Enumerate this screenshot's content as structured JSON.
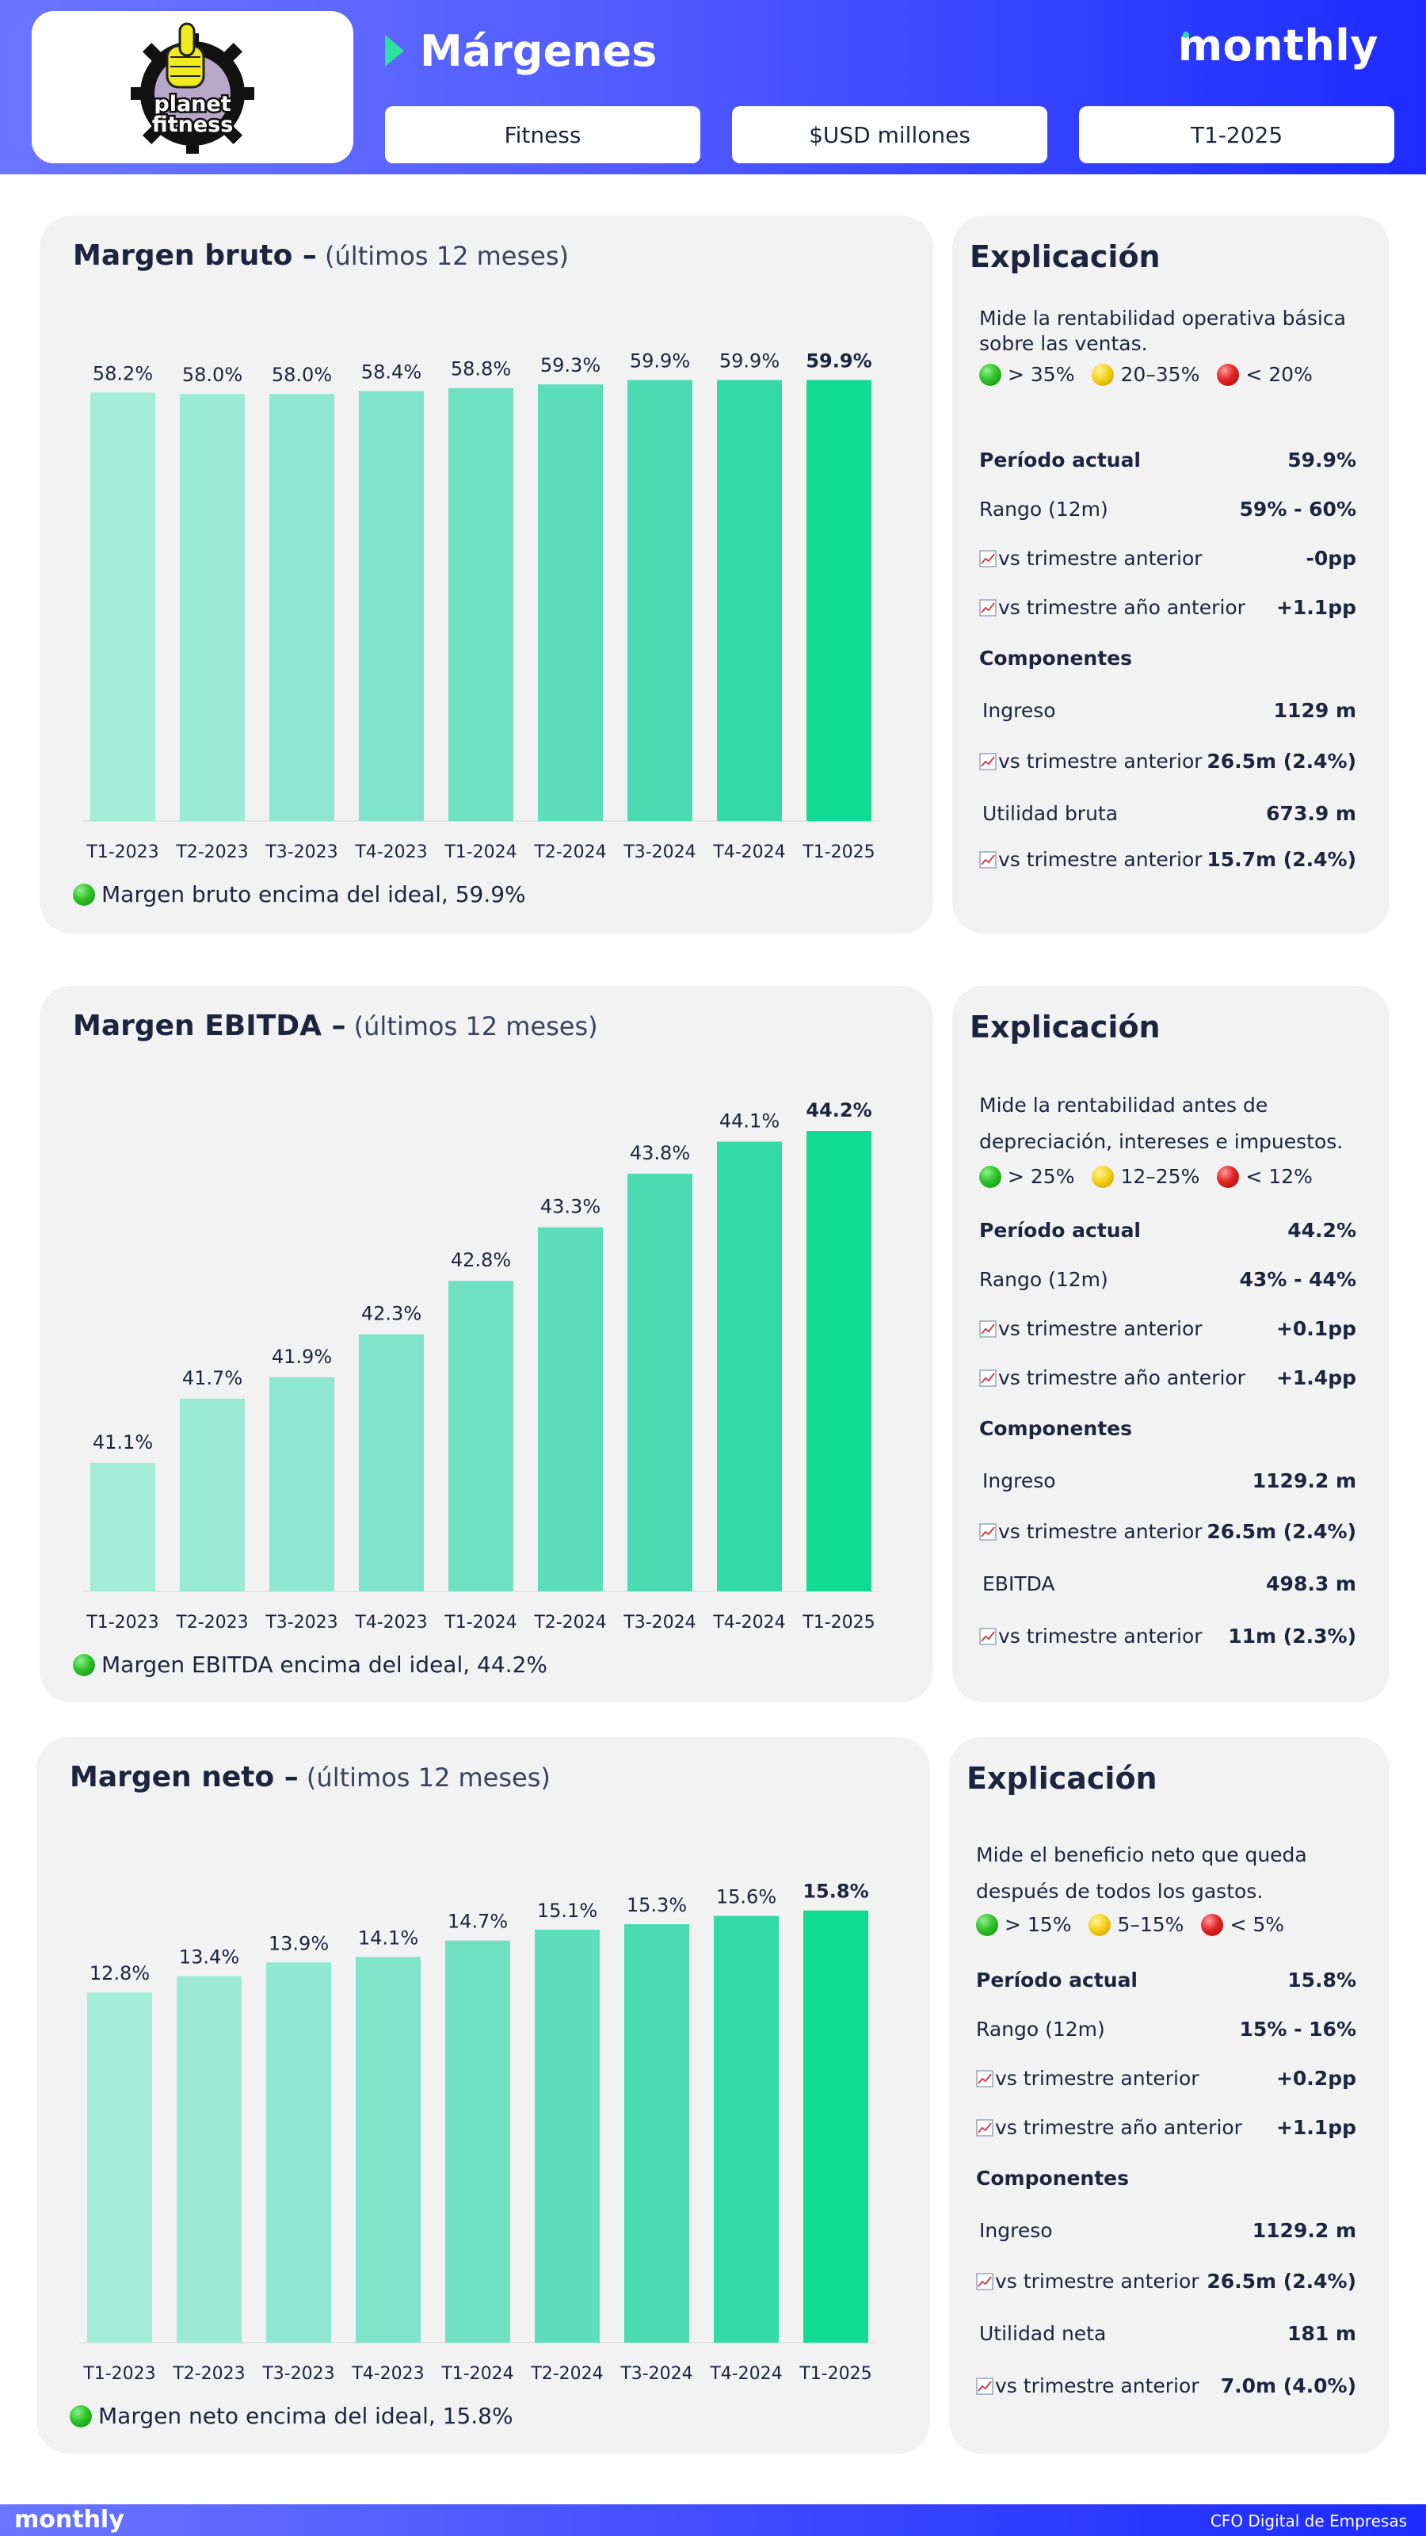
{
  "header": {
    "title": "Márgenes",
    "brand": "monthly",
    "logo_text_1": "planet",
    "logo_text_2": "fitness",
    "pills": [
      "Fitness",
      "$USD millones",
      "T1-2025"
    ]
  },
  "colors": {
    "bar_gradient": [
      "#a3ecd6",
      "#9bead3",
      "#8fe7cf",
      "#7fe4c8",
      "#6fe1c0",
      "#5cdeb8",
      "#4adcb0",
      "#33daa6",
      "#10db95"
    ]
  },
  "icons": {
    "trend": "trend-chart-icon",
    "legend_ball": "status-ball-icon"
  },
  "sections": [
    {
      "title": "Margen bruto –",
      "subtitle": " (últimos 12 meses)",
      "footnote": "Margen bruto encima del ideal, 59.9%",
      "exp_title": "Explicación",
      "exp_desc": "Mide la rentabilidad operativa básica sobre las ventas.",
      "legend": [
        "> 35%",
        "20–35%",
        "< 20%"
      ],
      "rows": [
        {
          "label": "Período actual",
          "value": "59.9%",
          "bold": true
        },
        {
          "label": "Rango (12m)",
          "value": "59% - 60%"
        },
        {
          "label": "vs trimestre anterior",
          "value": "-0pp",
          "icon": true
        },
        {
          "label": "vs trimestre año anterior",
          "value": "+1.1pp",
          "icon": true
        },
        {
          "label": "Componentes",
          "value": "",
          "bold": true
        },
        {
          "label": "Ingreso",
          "value": "1129 m",
          "indent": true
        },
        {
          "label": "vs trimestre anterior",
          "value": "26.5m (2.4%)",
          "icon": true
        },
        {
          "label": "Utilidad bruta",
          "value": "673.9 m",
          "indent": true
        },
        {
          "label": "vs trimestre anterior",
          "value": "15.7m (2.4%)",
          "icon": true
        }
      ]
    },
    {
      "title": "Margen EBITDA –",
      "subtitle": " (últimos 12 meses)",
      "footnote": "Margen EBITDA encima del ideal, 44.2%",
      "exp_title": "Explicación",
      "exp_desc": "Mide la rentabilidad antes de depreciación, intereses e impuestos.",
      "legend": [
        "> 25%",
        "12–25%",
        "< 12%"
      ],
      "rows": [
        {
          "label": "Período actual",
          "value": "44.2%",
          "bold": true
        },
        {
          "label": "Rango (12m)",
          "value": "43% - 44%"
        },
        {
          "label": "vs trimestre anterior",
          "value": "+0.1pp",
          "icon": true
        },
        {
          "label": "vs trimestre año anterior",
          "value": "+1.4pp",
          "icon": true
        },
        {
          "label": "Componentes",
          "value": "",
          "bold": true
        },
        {
          "label": "Ingreso",
          "value": "1129.2 m",
          "indent": true
        },
        {
          "label": "vs trimestre anterior",
          "value": "26.5m (2.4%)",
          "icon": true
        },
        {
          "label": "EBITDA",
          "value": "498.3 m",
          "indent": true
        },
        {
          "label": "vs trimestre anterior",
          "value": "11m (2.3%)",
          "icon": true
        }
      ]
    },
    {
      "title": "Margen neto –",
      "subtitle": " (últimos 12 meses)",
      "footnote": "Margen neto encima del ideal, 15.8%",
      "exp_title": "Explicación",
      "exp_desc": "Mide el beneficio neto que queda después de todos los gastos.",
      "legend": [
        "> 15%",
        "5–15%",
        "< 5%"
      ],
      "rows": [
        {
          "label": "Período actual",
          "value": "15.8%",
          "bold": true
        },
        {
          "label": "Rango (12m)",
          "value": "15% - 16%"
        },
        {
          "label": "vs trimestre anterior",
          "value": "+0.2pp",
          "icon": true
        },
        {
          "label": "vs trimestre año anterior",
          "value": "+1.1pp",
          "icon": true
        },
        {
          "label": "Componentes",
          "value": "",
          "bold": true
        },
        {
          "label": "Ingreso",
          "value": "1129.2 m",
          "indent": true
        },
        {
          "label": "vs trimestre anterior",
          "value": "26.5m (2.4%)",
          "icon": true
        },
        {
          "label": "Utilidad neta",
          "value": "181 m",
          "indent": true
        },
        {
          "label": "vs trimestre anterior",
          "value": "7.0m (4.0%)",
          "icon": true
        }
      ]
    }
  ],
  "footer": {
    "brand": "monthly",
    "tagline": "CFO Digital de Empresas"
  },
  "chart_data": [
    {
      "type": "bar",
      "title": "Margen bruto – (últimos 12 meses)",
      "categories": [
        "T1-2023",
        "T2-2023",
        "T3-2023",
        "T4-2023",
        "T1-2024",
        "T2-2024",
        "T3-2024",
        "T4-2024",
        "T1-2025"
      ],
      "values": [
        58.2,
        58.0,
        58.0,
        58.4,
        58.8,
        59.3,
        59.9,
        59.9,
        59.9
      ],
      "labels": [
        "58.2%",
        "58.0%",
        "58.0%",
        "58.4%",
        "58.8%",
        "59.3%",
        "59.9%",
        "59.9%",
        "59.9%"
      ],
      "ylim": [
        0,
        62
      ]
    },
    {
      "type": "bar",
      "title": "Margen EBITDA – (últimos 12 meses)",
      "categories": [
        "T1-2023",
        "T2-2023",
        "T3-2023",
        "T4-2023",
        "T1-2024",
        "T2-2024",
        "T3-2024",
        "T4-2024",
        "T1-2025"
      ],
      "values": [
        41.1,
        41.7,
        41.9,
        42.3,
        42.8,
        43.3,
        43.8,
        44.1,
        44.2
      ],
      "labels": [
        "41.1%",
        "41.7%",
        "41.9%",
        "42.3%",
        "42.8%",
        "43.3%",
        "43.8%",
        "44.1%",
        "44.2%"
      ],
      "ylim": [
        39.9,
        44.4
      ]
    },
    {
      "type": "bar",
      "title": "Margen neto – (últimos 12 meses)",
      "categories": [
        "T1-2023",
        "T2-2023",
        "T3-2023",
        "T4-2023",
        "T1-2024",
        "T2-2024",
        "T3-2024",
        "T4-2024",
        "T1-2025"
      ],
      "values": [
        12.8,
        13.4,
        13.9,
        14.1,
        14.7,
        15.1,
        15.3,
        15.6,
        15.8
      ],
      "labels": [
        "12.8%",
        "13.4%",
        "13.9%",
        "14.1%",
        "14.7%",
        "15.1%",
        "15.3%",
        "15.6%",
        "15.8%"
      ],
      "ylim": [
        0,
        16.4
      ]
    }
  ]
}
